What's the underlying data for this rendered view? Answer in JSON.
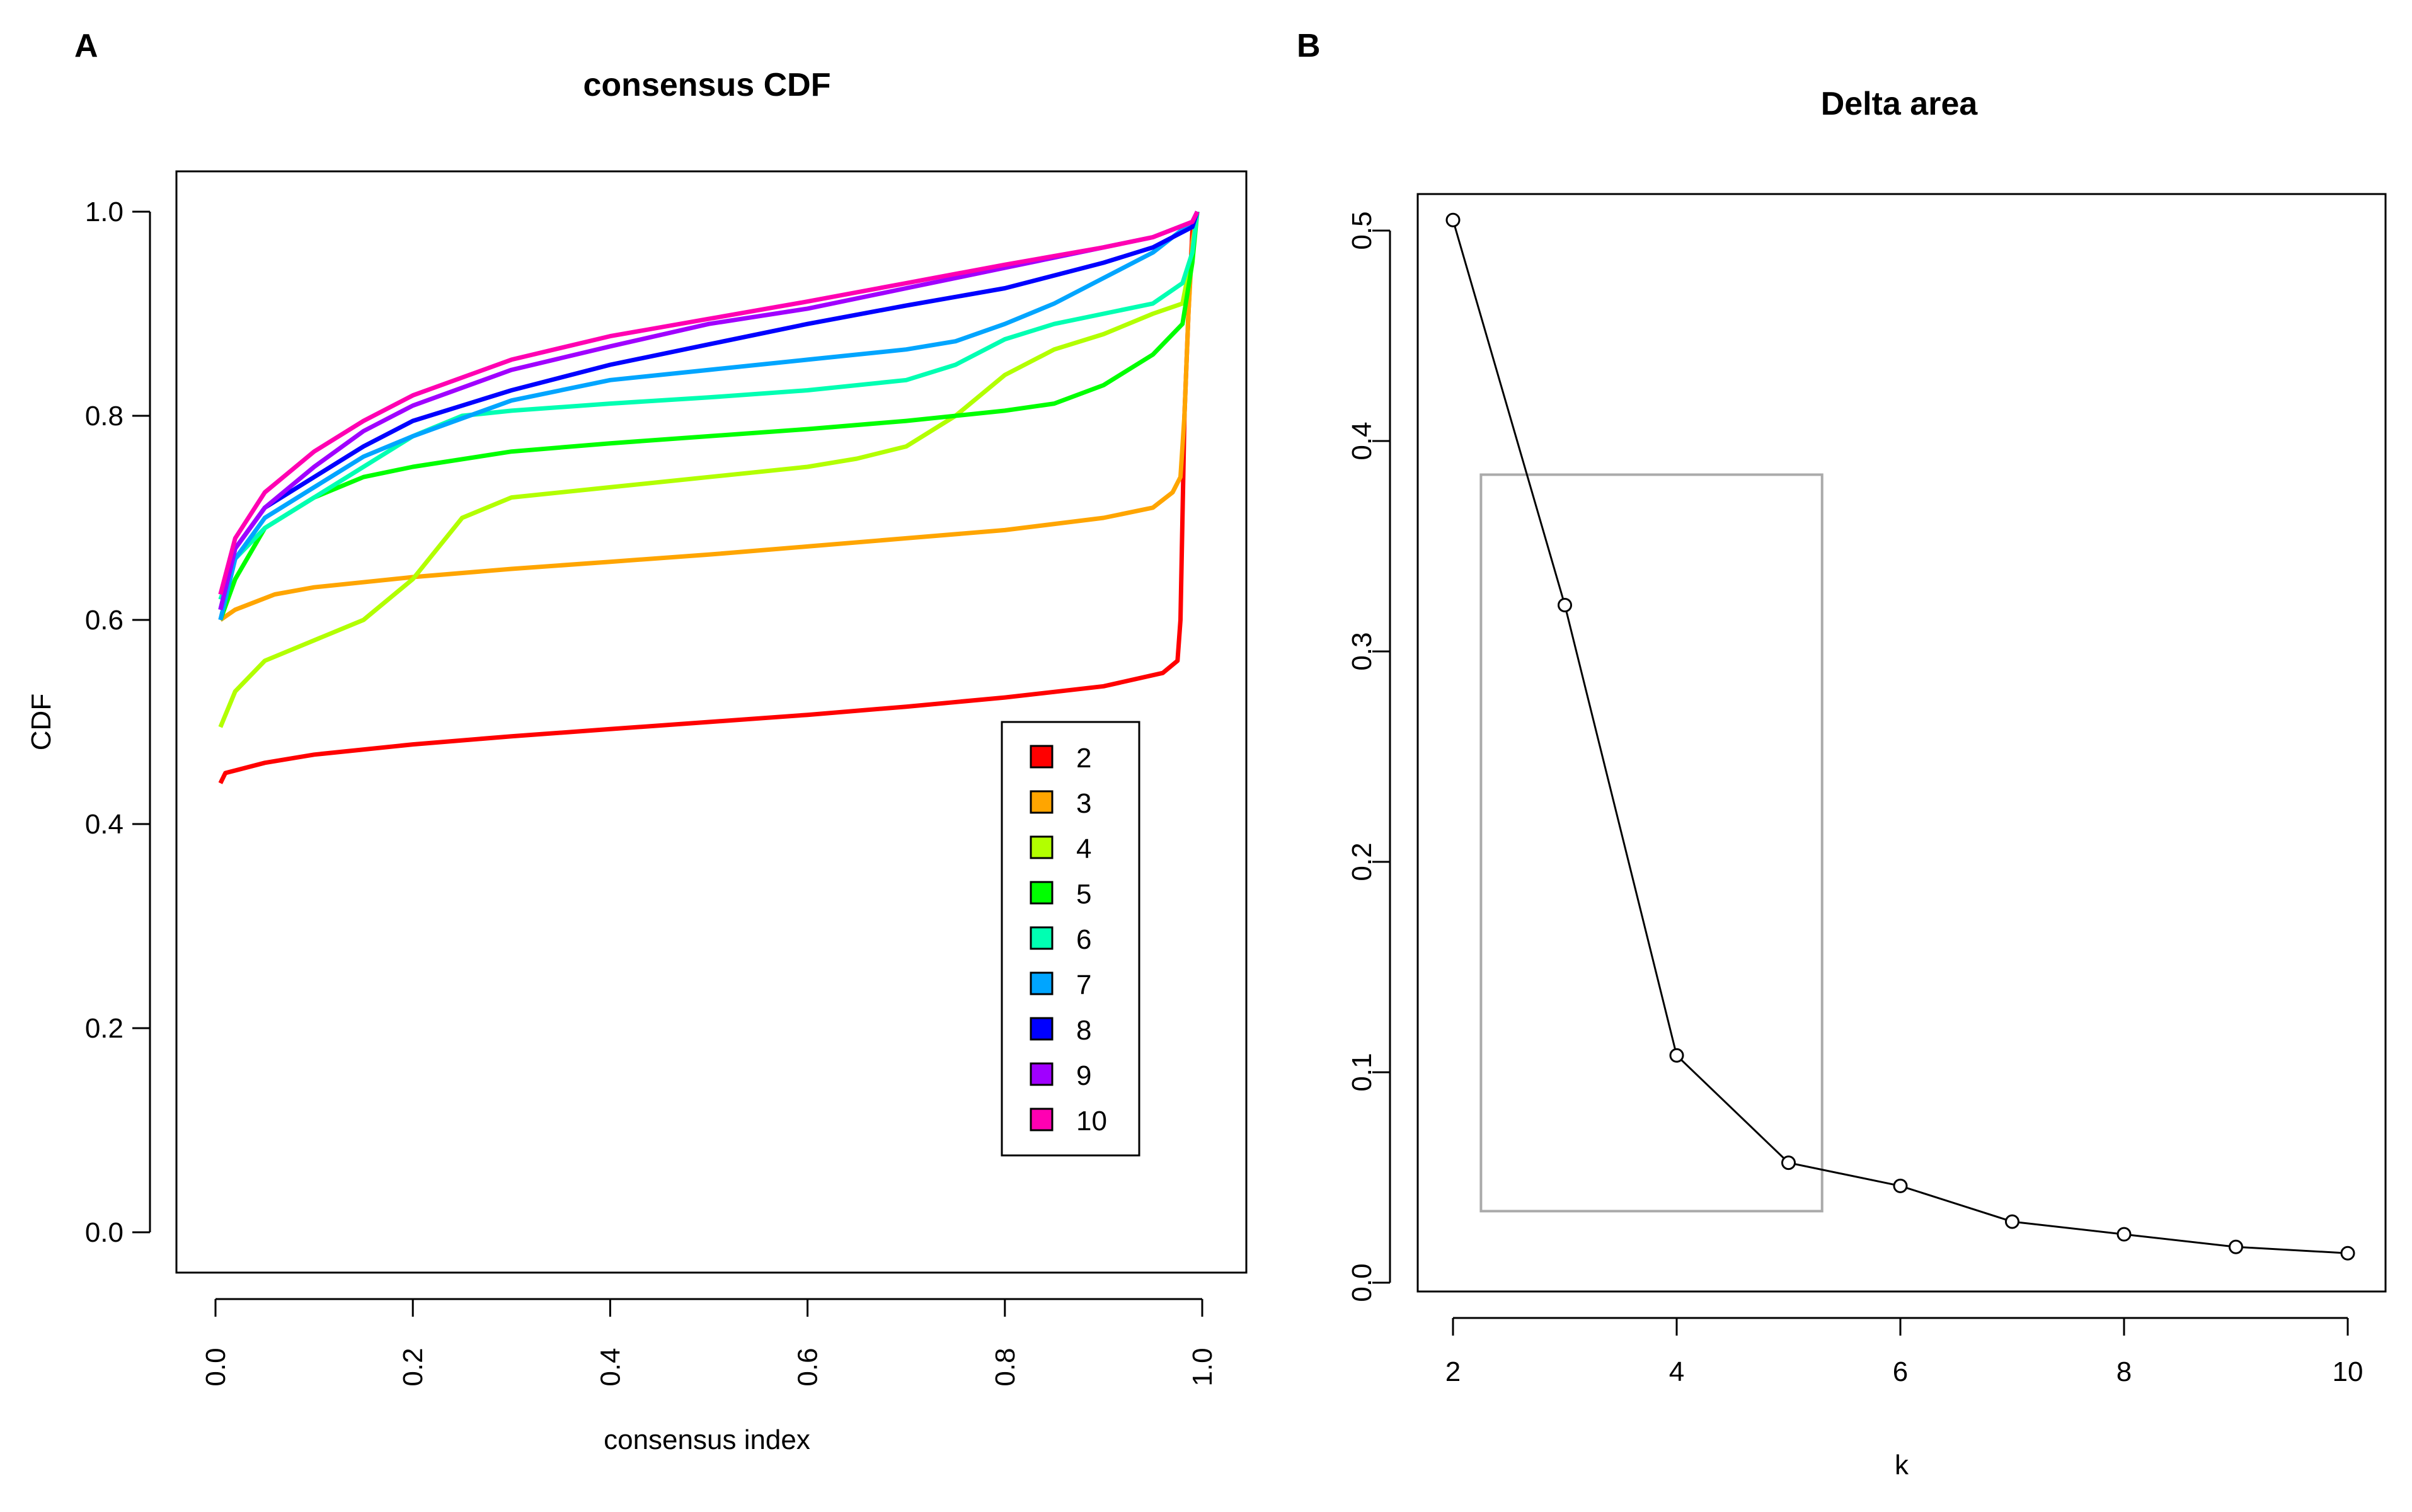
{
  "chart_data": [
    {
      "panel_label": "A",
      "type": "line",
      "title": "consensus CDF",
      "xlabel": "consensus index",
      "ylabel": "CDF",
      "xlim": [
        0.0,
        1.0
      ],
      "ylim": [
        0.0,
        1.0
      ],
      "xticks": [
        "0.0",
        "0.2",
        "0.4",
        "0.6",
        "0.8",
        "1.0"
      ],
      "yticks": [
        "0.0",
        "0.2",
        "0.4",
        "0.6",
        "0.8",
        "1.0"
      ],
      "legend_position": "bottom-right",
      "series": [
        {
          "name": "2",
          "color": "#ff0000",
          "points": [
            [
              0.005,
              0.44
            ],
            [
              0.01,
              0.45
            ],
            [
              0.05,
              0.46
            ],
            [
              0.1,
              0.468
            ],
            [
              0.2,
              0.478
            ],
            [
              0.3,
              0.486
            ],
            [
              0.4,
              0.493
            ],
            [
              0.5,
              0.5
            ],
            [
              0.6,
              0.507
            ],
            [
              0.7,
              0.515
            ],
            [
              0.8,
              0.524
            ],
            [
              0.9,
              0.535
            ],
            [
              0.96,
              0.548
            ],
            [
              0.975,
              0.56
            ],
            [
              0.978,
              0.6
            ],
            [
              0.982,
              0.8
            ],
            [
              0.986,
              0.9
            ],
            [
              0.99,
              0.98
            ],
            [
              0.995,
              1.0
            ]
          ]
        },
        {
          "name": "3",
          "color": "#ffa500",
          "points": [
            [
              0.005,
              0.6
            ],
            [
              0.02,
              0.61
            ],
            [
              0.06,
              0.625
            ],
            [
              0.1,
              0.632
            ],
            [
              0.2,
              0.642
            ],
            [
              0.3,
              0.65
            ],
            [
              0.4,
              0.657
            ],
            [
              0.5,
              0.664
            ],
            [
              0.6,
              0.672
            ],
            [
              0.7,
              0.68
            ],
            [
              0.8,
              0.688
            ],
            [
              0.9,
              0.7
            ],
            [
              0.95,
              0.71
            ],
            [
              0.97,
              0.725
            ],
            [
              0.978,
              0.74
            ],
            [
              0.982,
              0.8
            ],
            [
              0.986,
              0.9
            ],
            [
              0.99,
              0.97
            ],
            [
              0.995,
              1.0
            ]
          ]
        },
        {
          "name": "4",
          "color": "#b2ff00",
          "points": [
            [
              0.005,
              0.495
            ],
            [
              0.02,
              0.53
            ],
            [
              0.05,
              0.56
            ],
            [
              0.1,
              0.58
            ],
            [
              0.15,
              0.6
            ],
            [
              0.2,
              0.64
            ],
            [
              0.25,
              0.7
            ],
            [
              0.3,
              0.72
            ],
            [
              0.4,
              0.73
            ],
            [
              0.5,
              0.74
            ],
            [
              0.6,
              0.75
            ],
            [
              0.65,
              0.758
            ],
            [
              0.7,
              0.77
            ],
            [
              0.75,
              0.8
            ],
            [
              0.8,
              0.84
            ],
            [
              0.85,
              0.865
            ],
            [
              0.9,
              0.88
            ],
            [
              0.95,
              0.9
            ],
            [
              0.98,
              0.91
            ],
            [
              0.99,
              0.96
            ],
            [
              0.995,
              1.0
            ]
          ]
        },
        {
          "name": "5",
          "color": "#00ff00",
          "points": [
            [
              0.005,
              0.6
            ],
            [
              0.02,
              0.64
            ],
            [
              0.05,
              0.69
            ],
            [
              0.1,
              0.72
            ],
            [
              0.15,
              0.74
            ],
            [
              0.2,
              0.75
            ],
            [
              0.3,
              0.765
            ],
            [
              0.4,
              0.773
            ],
            [
              0.5,
              0.78
            ],
            [
              0.6,
              0.787
            ],
            [
              0.7,
              0.795
            ],
            [
              0.8,
              0.805
            ],
            [
              0.85,
              0.812
            ],
            [
              0.9,
              0.83
            ],
            [
              0.95,
              0.86
            ],
            [
              0.98,
              0.89
            ],
            [
              0.99,
              0.95
            ],
            [
              0.995,
              1.0
            ]
          ]
        },
        {
          "name": "6",
          "color": "#00ffb2",
          "points": [
            [
              0.005,
              0.62
            ],
            [
              0.02,
              0.66
            ],
            [
              0.05,
              0.69
            ],
            [
              0.1,
              0.72
            ],
            [
              0.15,
              0.75
            ],
            [
              0.2,
              0.78
            ],
            [
              0.25,
              0.8
            ],
            [
              0.3,
              0.805
            ],
            [
              0.4,
              0.812
            ],
            [
              0.5,
              0.818
            ],
            [
              0.6,
              0.825
            ],
            [
              0.7,
              0.835
            ],
            [
              0.75,
              0.85
            ],
            [
              0.8,
              0.875
            ],
            [
              0.85,
              0.89
            ],
            [
              0.9,
              0.9
            ],
            [
              0.95,
              0.91
            ],
            [
              0.98,
              0.93
            ],
            [
              0.99,
              0.96
            ],
            [
              0.995,
              1.0
            ]
          ]
        },
        {
          "name": "7",
          "color": "#00a5ff",
          "points": [
            [
              0.005,
              0.6
            ],
            [
              0.02,
              0.66
            ],
            [
              0.05,
              0.7
            ],
            [
              0.1,
              0.73
            ],
            [
              0.15,
              0.76
            ],
            [
              0.2,
              0.78
            ],
            [
              0.3,
              0.815
            ],
            [
              0.4,
              0.835
            ],
            [
              0.5,
              0.845
            ],
            [
              0.6,
              0.855
            ],
            [
              0.7,
              0.865
            ],
            [
              0.75,
              0.873
            ],
            [
              0.8,
              0.89
            ],
            [
              0.85,
              0.91
            ],
            [
              0.9,
              0.935
            ],
            [
              0.95,
              0.96
            ],
            [
              0.99,
              0.99
            ],
            [
              0.995,
              1.0
            ]
          ]
        },
        {
          "name": "8",
          "color": "#0000ff",
          "points": [
            [
              0.005,
              0.61
            ],
            [
              0.02,
              0.67
            ],
            [
              0.05,
              0.71
            ],
            [
              0.1,
              0.74
            ],
            [
              0.15,
              0.77
            ],
            [
              0.2,
              0.795
            ],
            [
              0.3,
              0.825
            ],
            [
              0.4,
              0.85
            ],
            [
              0.5,
              0.87
            ],
            [
              0.6,
              0.89
            ],
            [
              0.7,
              0.908
            ],
            [
              0.8,
              0.925
            ],
            [
              0.9,
              0.95
            ],
            [
              0.95,
              0.965
            ],
            [
              0.99,
              0.985
            ],
            [
              0.995,
              1.0
            ]
          ]
        },
        {
          "name": "9",
          "color": "#a000ff",
          "points": [
            [
              0.005,
              0.61
            ],
            [
              0.02,
              0.67
            ],
            [
              0.05,
              0.71
            ],
            [
              0.1,
              0.75
            ],
            [
              0.15,
              0.785
            ],
            [
              0.2,
              0.81
            ],
            [
              0.3,
              0.845
            ],
            [
              0.4,
              0.868
            ],
            [
              0.5,
              0.89
            ],
            [
              0.6,
              0.905
            ],
            [
              0.7,
              0.925
            ],
            [
              0.8,
              0.945
            ],
            [
              0.9,
              0.965
            ],
            [
              0.95,
              0.975
            ],
            [
              0.99,
              0.99
            ],
            [
              0.995,
              1.0
            ]
          ]
        },
        {
          "name": "10",
          "color": "#ff00b2",
          "points": [
            [
              0.005,
              0.625
            ],
            [
              0.02,
              0.68
            ],
            [
              0.05,
              0.725
            ],
            [
              0.1,
              0.765
            ],
            [
              0.15,
              0.795
            ],
            [
              0.2,
              0.82
            ],
            [
              0.3,
              0.855
            ],
            [
              0.4,
              0.878
            ],
            [
              0.5,
              0.895
            ],
            [
              0.6,
              0.912
            ],
            [
              0.7,
              0.93
            ],
            [
              0.8,
              0.948
            ],
            [
              0.9,
              0.965
            ],
            [
              0.95,
              0.975
            ],
            [
              0.99,
              0.99
            ],
            [
              0.995,
              1.0
            ]
          ]
        }
      ]
    },
    {
      "panel_label": "B",
      "type": "line",
      "title": "Delta area",
      "xlabel": "k",
      "ylabel": "",
      "xlim": [
        1.8,
        10.3
      ],
      "ylim": [
        -0.01,
        0.52
      ],
      "xticks": [
        "2",
        "4",
        "6",
        "8",
        "10"
      ],
      "yticks": [
        "0.0",
        "0.1",
        "0.2",
        "0.3",
        "0.4",
        "0.5"
      ],
      "series": [
        {
          "name": "Delta area",
          "color": "#000000",
          "x": [
            2,
            3,
            4,
            5,
            6,
            7,
            8,
            9,
            10
          ],
          "y": [
            0.505,
            0.322,
            0.108,
            0.057,
            0.046,
            0.029,
            0.023,
            0.017,
            0.014
          ]
        }
      ],
      "highlight_box": {
        "x_range": [
          2.25,
          5.3
        ],
        "y_range": [
          0.034,
          0.384
        ],
        "color": "#aaaaaa"
      }
    }
  ]
}
